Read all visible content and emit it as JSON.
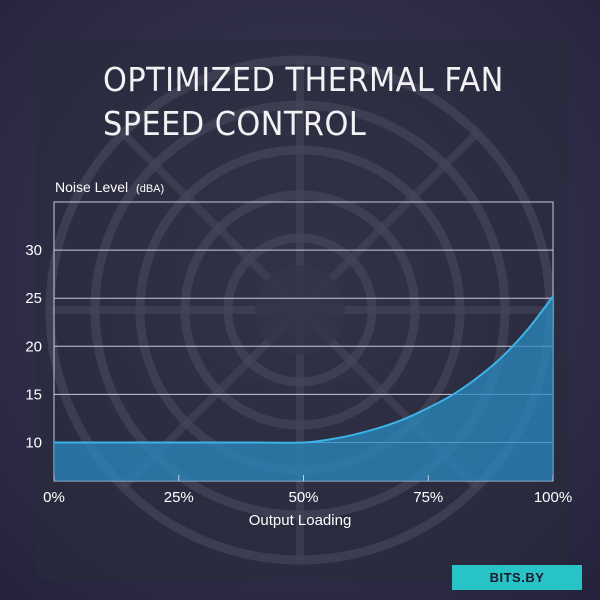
{
  "header": {
    "title_line1": "OPTIMIZED THERMAL FAN",
    "title_line2": "SPEED CONTROL"
  },
  "watermark": {
    "text": "BITS.BY"
  },
  "colors": {
    "background": "#2c2a45",
    "curve": "#3ab4e6",
    "fill": "#2a89c0",
    "grid": "#c8c8d8",
    "watermark_bg": "#27c3c7"
  },
  "chart_data": {
    "type": "area",
    "title": "OPTIMIZED THERMAL FAN SPEED CONTROL",
    "ylabel": "Noise Level",
    "ylabel_unit": "(dBA)",
    "xlabel": "Output Loading",
    "x_tick_labels": [
      "0%",
      "25%",
      "50%",
      "75%",
      "100%"
    ],
    "x_ticks": [
      0,
      25,
      50,
      75,
      100
    ],
    "y_ticks": [
      10,
      15,
      20,
      25,
      30
    ],
    "xlim": [
      0,
      100
    ],
    "ylim": [
      6,
      35
    ],
    "grid": true,
    "series": [
      {
        "x": [
          0,
          10,
          20,
          30,
          40,
          50,
          55,
          60,
          65,
          70,
          75,
          80,
          85,
          90,
          95,
          100
        ],
        "values": [
          10,
          10,
          10,
          10,
          10,
          10,
          10.3,
          10.8,
          11.5,
          12.4,
          13.6,
          15.0,
          16.8,
          19.0,
          21.8,
          25.2
        ]
      }
    ]
  }
}
